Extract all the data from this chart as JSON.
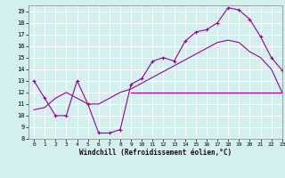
{
  "line1_x": [
    0,
    1,
    2,
    3,
    4,
    5,
    6,
    7,
    8,
    9,
    10,
    11,
    12,
    13,
    14,
    15,
    16,
    17,
    18,
    19,
    20,
    21,
    22,
    23
  ],
  "line1_y": [
    13,
    11.5,
    10,
    10,
    13,
    11,
    8.5,
    8.5,
    8.8,
    12.7,
    13.2,
    14.7,
    15.0,
    14.7,
    16.4,
    17.2,
    17.4,
    18.0,
    19.3,
    19.1,
    18.3,
    16.8,
    15.0,
    13.9
  ],
  "line2_x": [
    0,
    1,
    2,
    3,
    4,
    5,
    6,
    7,
    8,
    9,
    10,
    11,
    12,
    13,
    14,
    15,
    16,
    17,
    18,
    19,
    20,
    21,
    22,
    23
  ],
  "line2_y": [
    null,
    null,
    null,
    null,
    null,
    null,
    null,
    null,
    null,
    12.0,
    12.0,
    12.0,
    12.0,
    12.0,
    12.0,
    12.0,
    12.0,
    12.0,
    12.0,
    12.0,
    12.0,
    12.0,
    12.0,
    12.0
  ],
  "line3_x": [
    0,
    1,
    2,
    3,
    4,
    5,
    6,
    7,
    8,
    9,
    10,
    11,
    12,
    13,
    14,
    15,
    16,
    17,
    18,
    19,
    20,
    21,
    22,
    23
  ],
  "line3_y": [
    10.5,
    10.7,
    11.5,
    12.0,
    11.5,
    11.0,
    11.0,
    11.5,
    12.0,
    12.3,
    12.8,
    13.3,
    13.8,
    14.3,
    14.8,
    15.3,
    15.8,
    16.3,
    16.5,
    16.3,
    15.5,
    15.0,
    14.0,
    12.0
  ],
  "line_color": "#990099",
  "bg_color": "#d4f0ee",
  "grid_color": "#ffffff",
  "xlim": [
    -0.5,
    23
  ],
  "ylim": [
    8,
    19.5
  ],
  "xticks": [
    0,
    1,
    2,
    3,
    4,
    5,
    6,
    7,
    8,
    9,
    10,
    11,
    12,
    13,
    14,
    15,
    16,
    17,
    18,
    19,
    20,
    21,
    22,
    23
  ],
  "yticks": [
    8,
    9,
    10,
    11,
    12,
    13,
    14,
    15,
    16,
    17,
    18,
    19
  ],
  "xlabel": "Windchill (Refroidissement éolien,°C)"
}
